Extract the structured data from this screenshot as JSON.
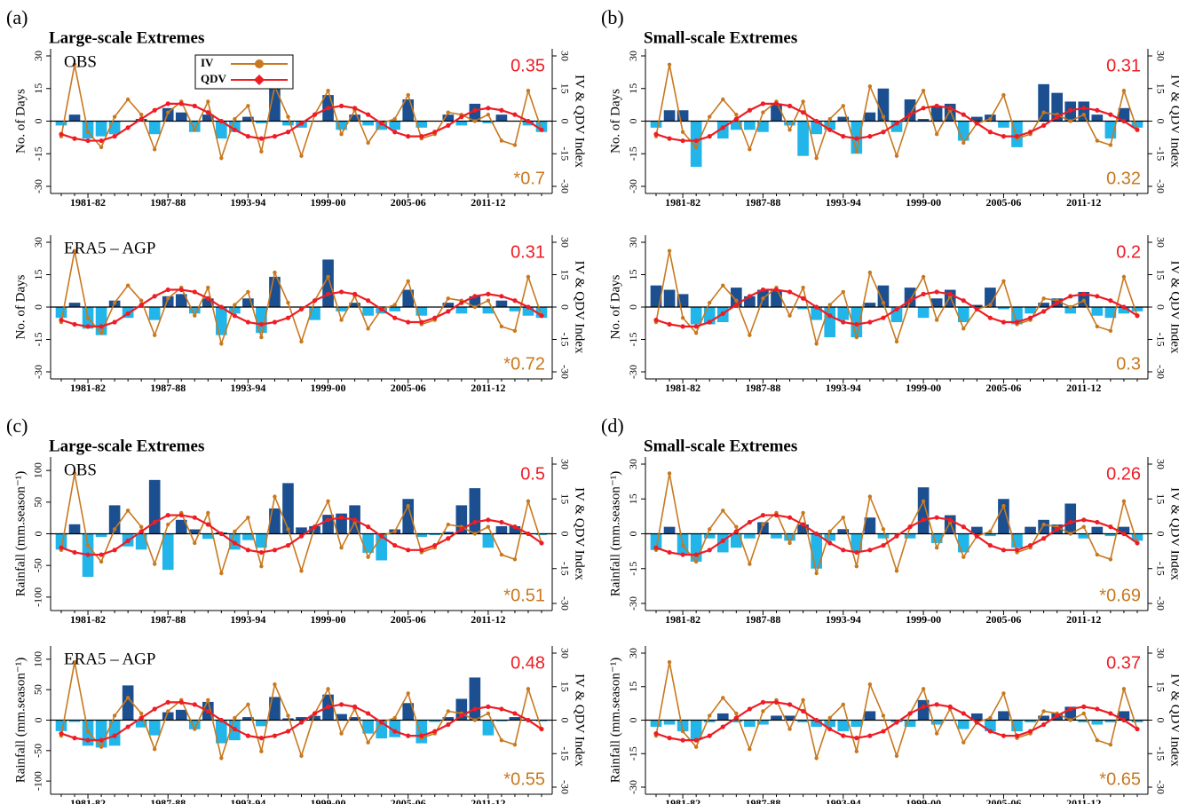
{
  "chart_data": {
    "type": "bar",
    "categories": [
      null,
      null,
      "1981-82",
      null,
      null,
      null,
      null,
      null,
      "1987-88",
      null,
      null,
      null,
      null,
      null,
      "1993-94",
      null,
      null,
      null,
      null,
      null,
      "1999-00",
      null,
      null,
      null,
      null,
      null,
      "2005-06",
      null,
      null,
      null,
      null,
      null,
      "2011-12",
      null,
      null,
      null,
      null
    ],
    "y2label": "IV & QDV Index",
    "y2lim": [
      -30,
      30
    ],
    "y2ticks": [
      -30,
      -15,
      0,
      15,
      30
    ],
    "positive_color": "#1b4f8f",
    "negative_color": "#22b5ea",
    "index_series": [
      {
        "name": "IV",
        "color": "#c8781e",
        "values": [
          -7,
          26,
          -5,
          -12,
          2,
          10,
          3,
          -13,
          4,
          9,
          -4,
          9,
          -17,
          1,
          7,
          -14,
          16,
          2,
          -16,
          3,
          14,
          -6,
          5,
          -10,
          -1,
          1,
          12,
          -8,
          -6,
          4,
          3,
          0,
          3,
          -9,
          -11,
          14,
          -4
        ]
      },
      {
        "name": "QDV",
        "color": "#ee1c24",
        "values": [
          -6,
          -8,
          -9,
          -9,
          -7,
          -3,
          1,
          5,
          8,
          8,
          7,
          4,
          0,
          -4,
          -7,
          -8,
          -7,
          -5,
          -1,
          3,
          6,
          7,
          6,
          3,
          -1,
          -5,
          -7,
          -7,
          -5,
          -2,
          2,
          5,
          6,
          5,
          3,
          0,
          -4
        ]
      }
    ],
    "groups": [
      {
        "label": "(a)",
        "title": "Large-scale Extremes",
        "panels": [
          {
            "name": "OBS",
            "legend": true,
            "ylabel": "No. of Days",
            "ylim": [
              -30,
              30
            ],
            "yticks": [
              -30,
              -15,
              0,
              15,
              30
            ],
            "qdv_corr": "0.35",
            "iv_corr": "*0.7",
            "values": [
              -2,
              3,
              -8,
              -7,
              -6,
              0,
              1,
              -6,
              6,
              4,
              -5,
              3,
              -8,
              -5,
              2,
              -1,
              17,
              -2,
              -3,
              0,
              12,
              -4,
              3,
              -2,
              -4,
              -4,
              10,
              -3,
              0,
              3,
              -2,
              8,
              -1,
              3,
              0,
              -2,
              -5
            ]
          },
          {
            "name": "ERA5 – AGP",
            "ylabel": "No. of Days",
            "ylim": [
              -30,
              30
            ],
            "yticks": [
              -30,
              -15,
              0,
              15,
              30
            ],
            "qdv_corr": "0.31",
            "iv_corr": "*0.72",
            "values": [
              -5,
              2,
              -10,
              -13,
              3,
              -5,
              0,
              -6,
              5,
              6,
              -3,
              4,
              -13,
              -3,
              4,
              -12,
              14,
              0,
              0,
              -6,
              22,
              -2,
              2,
              -4,
              -3,
              -2,
              8,
              -4,
              0,
              2,
              -3,
              5,
              -3,
              3,
              -2,
              -4,
              -5
            ]
          }
        ]
      },
      {
        "label": "(b)",
        "title": "Small-scale Extremes",
        "panels": [
          {
            "ylabel": "No. of Days",
            "ylim": [
              -30,
              30
            ],
            "yticks": [
              -30,
              -15,
              0,
              15,
              30
            ],
            "qdv_corr": "0.31",
            "iv_corr": "0.32",
            "values": [
              -3,
              5,
              5,
              -21,
              0,
              -8,
              -4,
              -4,
              -5,
              8,
              -2,
              -16,
              -6,
              -4,
              2,
              -15,
              4,
              15,
              -5,
              10,
              1,
              7,
              8,
              -9,
              2,
              3,
              -3,
              -12,
              0,
              17,
              13,
              9,
              9,
              3,
              -8,
              6,
              -3
            ]
          },
          {
            "ylabel": "No. of Days",
            "ylim": [
              -30,
              30
            ],
            "yticks": [
              -30,
              -15,
              0,
              15,
              30
            ],
            "qdv_corr": "0.2",
            "iv_corr": "0.3",
            "values": [
              10,
              8,
              6,
              -8,
              -8,
              -7,
              9,
              5,
              8,
              8,
              0,
              -1,
              -6,
              -14,
              -6,
              -14,
              2,
              10,
              -7,
              9,
              -5,
              4,
              8,
              -7,
              1,
              9,
              -1,
              -8,
              -3,
              2,
              4,
              -3,
              7,
              -4,
              -5,
              -3,
              -2
            ]
          }
        ]
      },
      {
        "label": "(c)",
        "title": "Large-scale Extremes",
        "panels": [
          {
            "name": "OBS",
            "ylabel": "Rainfall (mm.season⁻¹)",
            "ylim": [
              -110,
              110
            ],
            "yticks": [
              -100,
              -50,
              0,
              50,
              100
            ],
            "qdv_corr": "0.5",
            "iv_corr": "*0.51",
            "values": [
              -25,
              15,
              -68,
              -5,
              45,
              -20,
              -25,
              85,
              -57,
              22,
              7,
              -8,
              2,
              -25,
              -10,
              -22,
              40,
              80,
              10,
              12,
              30,
              32,
              45,
              -30,
              -42,
              7,
              55,
              -5,
              -2,
              3,
              45,
              72,
              -22,
              12,
              12,
              0,
              -2
            ]
          },
          {
            "name": "ERA5 – AGP",
            "ylabel": "Rainfall (mm.season⁻¹)",
            "ylim": [
              -110,
              110
            ],
            "yticks": [
              -100,
              -50,
              0,
              50,
              100
            ],
            "qdv_corr": "0.48",
            "iv_corr": "*0.55",
            "values": [
              -18,
              -3,
              -42,
              -45,
              -42,
              57,
              -12,
              -25,
              13,
              17,
              -15,
              30,
              -38,
              -33,
              5,
              -10,
              38,
              3,
              5,
              7,
              42,
              10,
              5,
              -22,
              -30,
              -28,
              28,
              -38,
              -3,
              5,
              35,
              70,
              -25,
              -2,
              5,
              0,
              -2
            ]
          }
        ]
      },
      {
        "label": "(d)",
        "title": "Small-scale Extremes",
        "panels": [
          {
            "ylabel": "Rainfall (mm.season⁻¹)",
            "ylim": [
              -30,
              30
            ],
            "yticks": [
              -30,
              -15,
              0,
              15,
              30
            ],
            "qdv_corr": "0.26",
            "iv_corr": "*0.69",
            "values": [
              -7,
              3,
              -9,
              -12,
              -2,
              -8,
              -6,
              -2,
              5,
              -2,
              -3,
              4,
              -15,
              -3,
              2,
              -8,
              7,
              -2,
              0,
              -2,
              20,
              -4,
              8,
              -8,
              3,
              -1,
              15,
              -6,
              3,
              6,
              4,
              13,
              -2,
              3,
              -1,
              3,
              -3
            ]
          },
          {
            "ylabel": "Rainfall (mm.season⁻¹)",
            "ylim": [
              -30,
              30
            ],
            "yticks": [
              -30,
              -15,
              0,
              15,
              30
            ],
            "qdv_corr": "0.37",
            "iv_corr": "*0.65",
            "values": [
              -3,
              -2,
              -5,
              -9,
              -1,
              3,
              -1,
              -3,
              -2,
              2,
              2,
              -1,
              -3,
              -3,
              -5,
              -3,
              4,
              0,
              -1,
              -3,
              9,
              -2,
              0,
              -4,
              3,
              -5,
              4,
              -5,
              -1,
              2,
              3,
              6,
              -1,
              -2,
              -1,
              4,
              -1
            ]
          }
        ]
      }
    ]
  }
}
